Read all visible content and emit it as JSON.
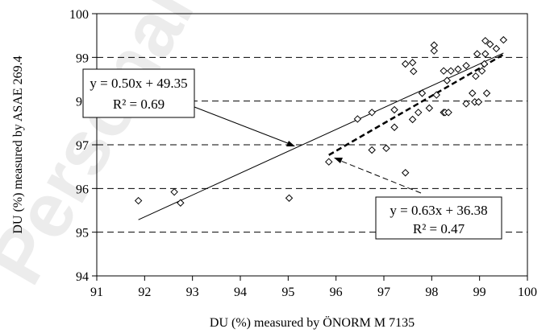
{
  "chart_data": {
    "type": "scatter",
    "xlabel": "DU (%) measured by ÖNORM M 7135",
    "ylabel": "DU (%) measured by ASAE 269.4",
    "xlim": [
      91,
      100
    ],
    "ylim": [
      94,
      100
    ],
    "x_ticks": [
      "91",
      "92",
      "93",
      "94",
      "95",
      "96",
      "97",
      "98",
      "99",
      "100"
    ],
    "y_ticks": [
      "94",
      "95",
      "96",
      "97",
      "98",
      "99",
      "100"
    ],
    "grid": "horizontal-dashed",
    "marker": "diamond",
    "points": [
      [
        91.87,
        95.72
      ],
      [
        92.62,
        95.92
      ],
      [
        92.75,
        95.67
      ],
      [
        95.02,
        95.78
      ],
      [
        95.85,
        96.61
      ],
      [
        96.45,
        97.59
      ],
      [
        96.75,
        96.88
      ],
      [
        96.75,
        97.74
      ],
      [
        97.05,
        96.92
      ],
      [
        97.22,
        97.4
      ],
      [
        97.22,
        97.8
      ],
      [
        97.45,
        96.36
      ],
      [
        97.45,
        98.85
      ],
      [
        97.6,
        98.88
      ],
      [
        97.62,
        98.68
      ],
      [
        97.6,
        97.58
      ],
      [
        97.72,
        97.74
      ],
      [
        97.8,
        98.18
      ],
      [
        97.95,
        97.84
      ],
      [
        98.05,
        99.28
      ],
      [
        98.05,
        99.15
      ],
      [
        98.1,
        98.14
      ],
      [
        98.25,
        98.69
      ],
      [
        98.25,
        97.74
      ],
      [
        98.28,
        97.74
      ],
      [
        98.32,
        98.47
      ],
      [
        98.35,
        97.74
      ],
      [
        98.4,
        98.69
      ],
      [
        98.55,
        98.73
      ],
      [
        98.72,
        98.81
      ],
      [
        98.72,
        97.94
      ],
      [
        98.85,
        98.18
      ],
      [
        98.9,
        97.98
      ],
      [
        98.92,
        98.57
      ],
      [
        98.95,
        99.08
      ],
      [
        98.98,
        97.98
      ],
      [
        99.05,
        98.69
      ],
      [
        99.1,
        98.85
      ],
      [
        99.12,
        99.08
      ],
      [
        99.12,
        99.38
      ],
      [
        99.15,
        98.18
      ],
      [
        99.22,
        99.3
      ],
      [
        99.35,
        99.2
      ],
      [
        99.5,
        99.4
      ]
    ],
    "series": [
      {
        "style": "solid",
        "x_range": [
          91.87,
          99.5
        ],
        "slope": 0.5,
        "intercept": 49.35,
        "equation": "y = 0.50x + 49.35",
        "r2": "R² = 0.69"
      },
      {
        "style": "dashed",
        "x_range": [
          95.85,
          99.5
        ],
        "slope": 0.63,
        "intercept": 36.38,
        "equation": "y = 0.63x + 36.38",
        "r2": "R² = 0.47"
      }
    ]
  },
  "watermark": "Personal"
}
